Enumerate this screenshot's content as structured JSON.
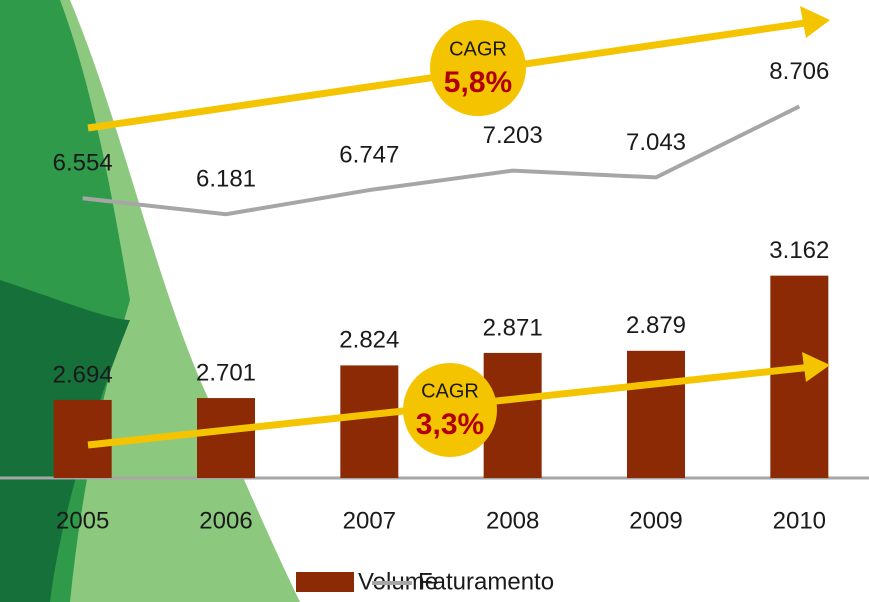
{
  "chart_data": {
    "type": "bar",
    "categories": [
      "2005",
      "2006",
      "2007",
      "2008",
      "2009",
      "2010"
    ],
    "series": [
      {
        "name": "Volume",
        "type": "bar",
        "color": "#8b2a05",
        "values": [
          2694,
          2701,
          2824,
          2871,
          2879,
          3162
        ],
        "value_labels": [
          "2.694",
          "2.701",
          "2.824",
          "2.871",
          "2.879",
          "3.162"
        ]
      },
      {
        "name": "Faturamento",
        "type": "line",
        "axis": "y2",
        "color": "#a6a6a6",
        "values": [
          6554,
          6181,
          6747,
          7203,
          7043,
          8706
        ],
        "value_labels": [
          "6.554",
          "6.181",
          "6.747",
          "7.203",
          "7.043",
          "8.706"
        ]
      }
    ],
    "ylim": [
      2400,
      4200
    ],
    "y2lim": [
      0,
      11200
    ],
    "annotations": [
      "CAGR",
      "5,8%",
      "CAGR",
      "3,3%"
    ]
  }
}
